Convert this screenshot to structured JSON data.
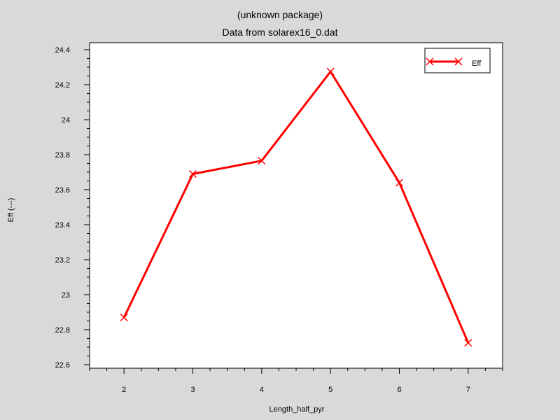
{
  "chart_data": {
    "type": "line",
    "title": "(unknown package)",
    "subtitle": "Data from solarex16_0.dat",
    "xlabel": "Length_half_pyr",
    "ylabel": "Eff (---)",
    "xlim": [
      1.5,
      7.5
    ],
    "ylim": [
      22.58,
      24.44
    ],
    "x_ticks": [
      2,
      3,
      4,
      5,
      6,
      7
    ],
    "y_ticks": [
      22.6,
      22.8,
      23,
      23.2,
      23.4,
      23.6,
      23.8,
      24,
      24.2,
      24.4
    ],
    "y_tick_labels": [
      "22.6",
      "22.8",
      "23",
      "23.2",
      "23.4",
      "23.6",
      "23.8",
      "24",
      "24.2",
      "24.4"
    ],
    "grid": false,
    "legend_position": "top-right",
    "series": [
      {
        "name": "Eff",
        "color": "#ff0000",
        "marker": "x",
        "x": [
          2,
          3,
          4,
          5,
          6,
          7
        ],
        "y": [
          22.87,
          23.69,
          23.765,
          24.275,
          23.64,
          22.725
        ]
      }
    ]
  }
}
